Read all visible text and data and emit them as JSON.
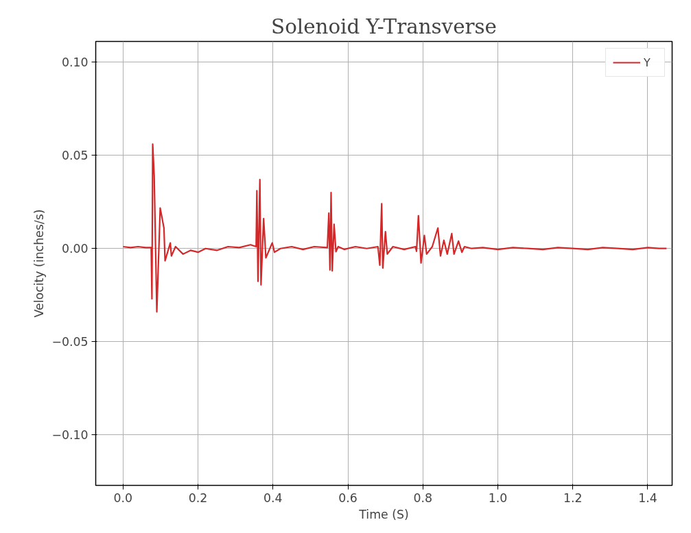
{
  "chart_data": {
    "type": "line",
    "title": "Solenoid Y-Transverse",
    "xlabel": "Time (S)",
    "ylabel": "Velocity (inches/s)",
    "xlim": [
      -0.073,
      1.465
    ],
    "ylim": [
      -0.127,
      0.111
    ],
    "xticks": [
      {
        "value": 0,
        "label": "0.0"
      },
      {
        "value": 0.2,
        "label": "0.2"
      },
      {
        "value": 0.4,
        "label": "0.4"
      },
      {
        "value": 0.6,
        "label": "0.6"
      },
      {
        "value": 0.8,
        "label": "0.8"
      },
      {
        "value": 1.0,
        "label": "1.0"
      },
      {
        "value": 1.2,
        "label": "1.2"
      },
      {
        "value": 1.4,
        "label": "1.4"
      }
    ],
    "yticks": [
      {
        "value": -0.1,
        "label": "−0.10"
      },
      {
        "value": -0.05,
        "label": "−0.05"
      },
      {
        "value": 0,
        "label": "0.00"
      },
      {
        "value": 0.05,
        "label": "0.05"
      },
      {
        "value": 0.1,
        "label": "0.10"
      }
    ],
    "grid": true,
    "legend": "top right",
    "marker": "none",
    "line_style": "solid",
    "series": [
      {
        "name": "Y",
        "color": "#d62728",
        "x": [
          0,
          0.02,
          0.04,
          0.06,
          0.075,
          0.077,
          0.079,
          0.083,
          0.09,
          0.099,
          0.109,
          0.112,
          0.126,
          0.129,
          0.14,
          0.16,
          0.18,
          0.2,
          0.22,
          0.25,
          0.28,
          0.31,
          0.34,
          0.355,
          0.357,
          0.36,
          0.365,
          0.368,
          0.375,
          0.381,
          0.398,
          0.404,
          0.42,
          0.45,
          0.48,
          0.51,
          0.545,
          0.549,
          0.552,
          0.555,
          0.558,
          0.563,
          0.568,
          0.574,
          0.59,
          0.62,
          0.65,
          0.68,
          0.685,
          0.69,
          0.693,
          0.7,
          0.705,
          0.72,
          0.75,
          0.78,
          0.783,
          0.788,
          0.795,
          0.804,
          0.81,
          0.825,
          0.84,
          0.847,
          0.856,
          0.865,
          0.877,
          0.883,
          0.895,
          0.904,
          0.911,
          0.93,
          0.96,
          1.0,
          1.04,
          1.08,
          1.12,
          1.16,
          1.2,
          1.24,
          1.28,
          1.32,
          1.36,
          1.4,
          1.43,
          1.45
        ],
        "values": [
          0.001,
          0.0005,
          0.001,
          0.0005,
          0.0005,
          -0.027,
          0.056,
          0.039,
          -0.034,
          0.0217,
          0.011,
          -0.0066,
          0.003,
          -0.004,
          0.001,
          -0.003,
          -0.001,
          -0.002,
          0,
          -0.001,
          0.001,
          0.0005,
          0.002,
          0.001,
          0.031,
          -0.0176,
          0.037,
          -0.0195,
          0.016,
          -0.005,
          0.003,
          -0.002,
          0,
          0.001,
          -0.0005,
          0.001,
          0.0005,
          0.019,
          -0.0115,
          0.03,
          -0.012,
          0.013,
          -0.0017,
          0.001,
          -0.0005,
          0.001,
          0,
          0.001,
          -0.009,
          0.024,
          -0.0105,
          0.009,
          -0.003,
          0.001,
          -0.0005,
          0.001,
          -0.0015,
          0.0176,
          -0.0078,
          0.007,
          -0.003,
          0.001,
          0.011,
          -0.004,
          0.0044,
          -0.003,
          0.008,
          -0.003,
          0.004,
          -0.002,
          0.001,
          0,
          0.0005,
          -0.0005,
          0.0005,
          0,
          -0.0005,
          0.0005,
          0,
          -0.0005,
          0.0005,
          0,
          -0.0005,
          0.0005,
          0,
          0
        ]
      }
    ]
  }
}
